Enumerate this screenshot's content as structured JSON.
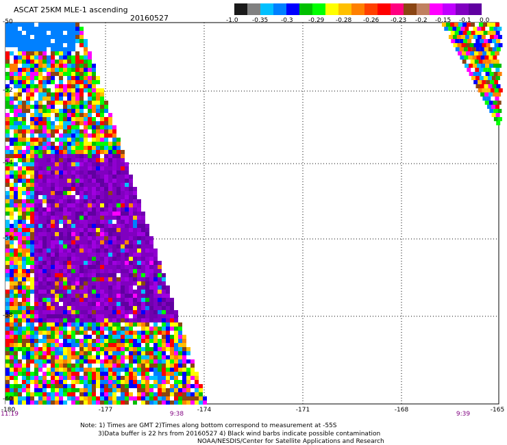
{
  "header": {
    "title": "ASCAT 25KM MLE-1 ascending",
    "date": "20160527"
  },
  "legend": {
    "labels": [
      "-1.0",
      "-0.35",
      "-0.3",
      "-0.29",
      "-0.28",
      "-0.26",
      "-0.23",
      "-0.2",
      "-0.15",
      "-0.1",
      "0.0"
    ],
    "colors": [
      "#1a1a1a",
      "#808080",
      "#00c0ff",
      "#0080ff",
      "#0000ff",
      "#00c000",
      "#00ff00",
      "#ffff00",
      "#ffc000",
      "#ff8000",
      "#ff4000",
      "#ff0000",
      "#ff0080",
      "#8b4513",
      "#c08060",
      "#ff00ff",
      "#c000ff",
      "#8000c0",
      "#6000a0"
    ]
  },
  "axes": {
    "y_labels": [
      "-50",
      "-52",
      "-54",
      "-56",
      "-58",
      "-60"
    ],
    "x_labels": [
      "-180",
      "-177",
      "-174",
      "-171",
      "-168",
      "-165"
    ]
  },
  "times": [
    "11:19",
    "9:38",
    "9:39"
  ],
  "notes": {
    "line1": "Note: 1) Times are GMT 2)Times along bottom correspond to measurement at -55S",
    "line2": "3)Data buffer is 22 hrs from 20160527 4) Black wind barbs indicate possible contamination",
    "line3": "NOAA/NESDIS/Center for Satellite Applications and Research"
  }
}
